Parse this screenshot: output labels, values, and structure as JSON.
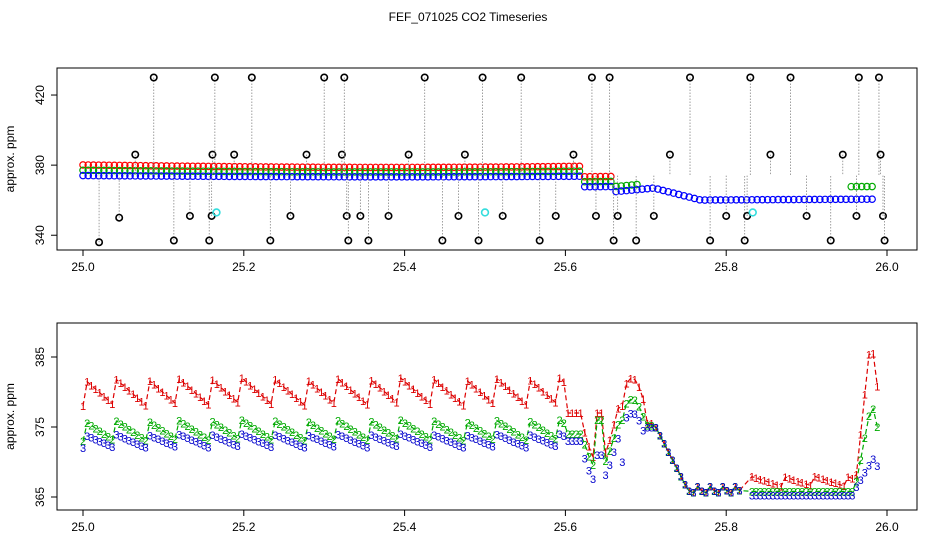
{
  "figure": {
    "title": "FEF_071025  CO2 Timeseries"
  },
  "chart_data": [
    {
      "type": "scatter",
      "ylabel": "approx. ppm",
      "xlim": [
        25.0,
        26.0
      ],
      "ylim": [
        335,
        432
      ],
      "x_ticks": [
        "25.0",
        "25.2",
        "25.4",
        "25.6",
        "25.8",
        "26.0"
      ],
      "y_ticks": [
        "340",
        "380",
        "420"
      ],
      "y_tick_values": [
        340,
        380,
        420
      ],
      "grid": false,
      "legend": "none",
      "series": [
        {
          "color": "#ff0000",
          "role": "level-1 points",
          "base": [
            380,
            379,
            378
          ]
        },
        {
          "color": "#00aa00",
          "role": "level-2 points",
          "base": [
            377,
            376,
            375
          ]
        },
        {
          "color": "#0000ff",
          "role": "level-3 points",
          "base": [
            374,
            373,
            372
          ]
        },
        {
          "color": "#000000",
          "role": "spike / outlier markers"
        },
        {
          "color": "#33dddd",
          "role": "flagged markers"
        }
      ],
      "outliers": [
        {
          "x": 25.02,
          "y": 336
        },
        {
          "x": 25.045,
          "y": 350
        },
        {
          "x": 25.065,
          "y": 386
        },
        {
          "x": 25.088,
          "y": 430
        },
        {
          "x": 25.113,
          "y": 337
        },
        {
          "x": 25.133,
          "y": 351
        },
        {
          "x": 25.157,
          "y": 337
        },
        {
          "x": 25.16,
          "y": 351
        },
        {
          "x": 25.161,
          "y": 386
        },
        {
          "x": 25.164,
          "y": 430
        },
        {
          "x": 25.188,
          "y": 386
        },
        {
          "x": 25.21,
          "y": 430
        },
        {
          "x": 25.233,
          "y": 337
        },
        {
          "x": 25.258,
          "y": 351
        },
        {
          "x": 25.278,
          "y": 386
        },
        {
          "x": 25.3,
          "y": 430
        },
        {
          "x": 25.322,
          "y": 386
        },
        {
          "x": 25.325,
          "y": 430
        },
        {
          "x": 25.328,
          "y": 351
        },
        {
          "x": 25.33,
          "y": 337
        },
        {
          "x": 25.345,
          "y": 351
        },
        {
          "x": 25.355,
          "y": 337
        },
        {
          "x": 25.38,
          "y": 351
        },
        {
          "x": 25.405,
          "y": 386
        },
        {
          "x": 25.425,
          "y": 430
        },
        {
          "x": 25.447,
          "y": 337
        },
        {
          "x": 25.467,
          "y": 351
        },
        {
          "x": 25.475,
          "y": 386
        },
        {
          "x": 25.492,
          "y": 337
        },
        {
          "x": 25.497,
          "y": 430
        },
        {
          "x": 25.522,
          "y": 351
        },
        {
          "x": 25.545,
          "y": 430
        },
        {
          "x": 25.568,
          "y": 337
        },
        {
          "x": 25.588,
          "y": 351
        },
        {
          "x": 25.61,
          "y": 386
        },
        {
          "x": 25.633,
          "y": 430
        },
        {
          "x": 25.638,
          "y": 351
        },
        {
          "x": 25.655,
          "y": 430
        },
        {
          "x": 25.66,
          "y": 337
        },
        {
          "x": 25.665,
          "y": 351
        },
        {
          "x": 25.688,
          "y": 337
        },
        {
          "x": 25.71,
          "y": 351
        },
        {
          "x": 25.73,
          "y": 386
        },
        {
          "x": 25.755,
          "y": 430
        },
        {
          "x": 25.78,
          "y": 337
        },
        {
          "x": 25.8,
          "y": 351
        },
        {
          "x": 25.823,
          "y": 337
        },
        {
          "x": 25.826,
          "y": 351
        },
        {
          "x": 25.83,
          "y": 430
        },
        {
          "x": 25.855,
          "y": 386
        },
        {
          "x": 25.88,
          "y": 430
        },
        {
          "x": 25.9,
          "y": 351
        },
        {
          "x": 25.93,
          "y": 337
        },
        {
          "x": 25.945,
          "y": 386
        },
        {
          "x": 25.962,
          "y": 351
        },
        {
          "x": 25.965,
          "y": 430
        },
        {
          "x": 25.99,
          "y": 430
        },
        {
          "x": 25.992,
          "y": 386
        },
        {
          "x": 25.995,
          "y": 351
        },
        {
          "x": 25.997,
          "y": 337
        }
      ],
      "flagged": [
        {
          "x": 25.166,
          "y": 353
        },
        {
          "x": 25.5,
          "y": 353
        },
        {
          "x": 25.833,
          "y": 353
        }
      ]
    },
    {
      "type": "line",
      "ylabel": "approx. ppm",
      "xlim": [
        25.0,
        26.0
      ],
      "ylim": [
        364,
        389
      ],
      "x_ticks": [
        "25.0",
        "25.2",
        "25.4",
        "25.6",
        "25.8",
        "26.0"
      ],
      "y_ticks": [
        "365",
        "375",
        "385"
      ],
      "y_tick_values": [
        365,
        375,
        385
      ],
      "grid": false,
      "legend": "none",
      "series": [
        {
          "symbol": "1",
          "color": "#dd0000"
        },
        {
          "symbol": "2",
          "color": "#00aa00"
        },
        {
          "symbol": "3",
          "color": "#0000cc"
        }
      ]
    }
  ]
}
